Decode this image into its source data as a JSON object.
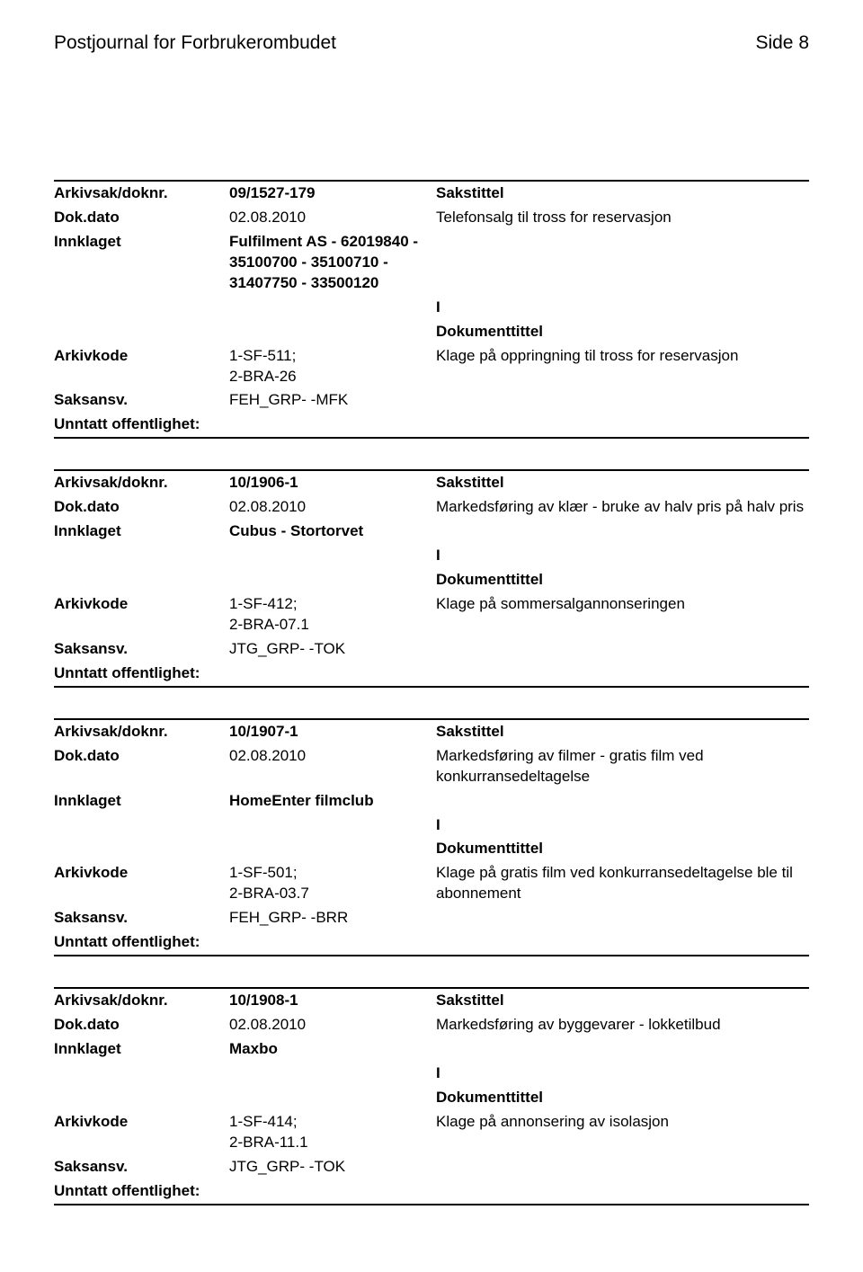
{
  "header": {
    "journal_title": "Postjournal for Forbrukerombudet",
    "page_label": "Side 8"
  },
  "labels": {
    "arkivsak": "Arkivsak/doknr.",
    "dokdato": "Dok.dato",
    "innklaget": "Innklaget",
    "arkivkode": "Arkivkode",
    "saksansv": "Saksansv.",
    "unntatt": "Unntatt offentlighet:",
    "sakstittel": "Sakstittel",
    "dokumenttittel": "Dokumenttittel"
  },
  "entries": [
    {
      "arkivsak": "09/1527-179",
      "dokdato": "02.08.2010",
      "innklaget": "Fulfilment AS - 62019840 - 35100700 - 35100710 - 31407750 - 33500120",
      "doktype": "I",
      "arkivkode": "1-SF-511;\n2-BRA-26",
      "saksansv": "FEH_GRP- -MFK",
      "sakstittel": "Telefonsalg til tross for reservasjon",
      "dokumenttittel": "Klage på oppringning til tross for reservasjon"
    },
    {
      "arkivsak": "10/1906-1",
      "dokdato": "02.08.2010",
      "innklaget": "Cubus - Stortorvet",
      "doktype": "I",
      "arkivkode": "1-SF-412;\n2-BRA-07.1",
      "saksansv": "JTG_GRP- -TOK",
      "sakstittel": "Markedsføring av klær - bruke av halv pris på halv pris",
      "dokumenttittel": "Klage på sommersalgannonseringen"
    },
    {
      "arkivsak": "10/1907-1",
      "dokdato": "02.08.2010",
      "innklaget": "HomeEnter filmclub",
      "doktype": "I",
      "arkivkode": "1-SF-501;\n2-BRA-03.7",
      "saksansv": "FEH_GRP- -BRR",
      "sakstittel": "Markedsføring av filmer - gratis film ved konkurransedeltagelse",
      "dokumenttittel": "Klage på gratis film ved konkurransedeltagelse ble til abonnement"
    },
    {
      "arkivsak": "10/1908-1",
      "dokdato": "02.08.2010",
      "innklaget": "Maxbo",
      "doktype": "I",
      "arkivkode": "1-SF-414;\n2-BRA-11.1",
      "saksansv": "JTG_GRP- -TOK",
      "sakstittel": "Markedsføring av byggevarer - lokketilbud",
      "dokumenttittel": "Klage på annonsering av isolasjon"
    }
  ]
}
